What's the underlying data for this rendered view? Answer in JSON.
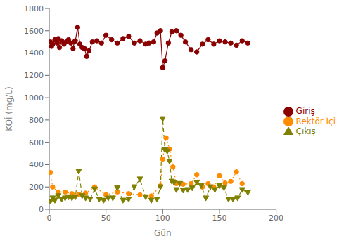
{
  "chart_data": {
    "type": "line",
    "xlabel": "Gün",
    "ylabel": "KOİ (mg/L)",
    "xlim": [
      0,
      200
    ],
    "ylim": [
      0,
      1800
    ],
    "xticks": [
      0,
      50,
      100,
      150,
      200
    ],
    "yticks": [
      0,
      200,
      400,
      600,
      800,
      1000,
      1200,
      1400,
      1600,
      1800
    ],
    "grid": false,
    "legend": "right",
    "series": [
      {
        "name": "Giriş",
        "color": "#8B0000",
        "marker": "circle",
        "line_style": "solid",
        "x": [
          1,
          2,
          3,
          5,
          7,
          8,
          9,
          11,
          13,
          15,
          17,
          19,
          21,
          22,
          23,
          25,
          27,
          29,
          31,
          33,
          35,
          38,
          42,
          46,
          50,
          55,
          60,
          65,
          70,
          75,
          80,
          85,
          88,
          92,
          95,
          98,
          100,
          102,
          105,
          108,
          112,
          116,
          120,
          125,
          130,
          135,
          140,
          145,
          150,
          155,
          160,
          165,
          170,
          175
        ],
        "values": [
          1500,
          1460,
          1480,
          1520,
          1490,
          1530,
          1450,
          1510,
          1480,
          1500,
          1520,
          1490,
          1440,
          1500,
          1510,
          1630,
          1480,
          1450,
          1440,
          1370,
          1420,
          1500,
          1510,
          1490,
          1560,
          1520,
          1490,
          1530,
          1550,
          1490,
          1510,
          1480,
          1490,
          1500,
          1580,
          1600,
          1270,
          1330,
          1490,
          1590,
          1600,
          1560,
          1500,
          1430,
          1410,
          1480,
          1520,
          1480,
          1510,
          1500,
          1490,
          1470,
          1510,
          1490
        ]
      },
      {
        "name": "Rektör İçi",
        "color": "#FF8C00",
        "marker": "circle",
        "line_style": "dotted",
        "x": [
          1,
          3,
          8,
          14,
          20,
          26,
          32,
          40,
          50,
          60,
          70,
          80,
          90,
          98,
          100,
          103,
          106,
          109,
          112,
          118,
          125,
          130,
          135,
          140,
          145,
          150,
          155,
          160,
          165,
          170
        ],
        "values": [
          330,
          200,
          155,
          155,
          140,
          135,
          145,
          200,
          130,
          155,
          140,
          130,
          120,
          210,
          450,
          640,
          540,
          380,
          230,
          225,
          230,
          310,
          200,
          230,
          200,
          300,
          235,
          250,
          335,
          230
        ]
      },
      {
        "name": "Çıkış",
        "color": "#808000",
        "marker": "triangle_down",
        "line_style": "dashed",
        "x": [
          1,
          3,
          5,
          8,
          11,
          14,
          17,
          20,
          23,
          26,
          29,
          32,
          36,
          40,
          44,
          48,
          52,
          56,
          60,
          65,
          70,
          75,
          80,
          85,
          90,
          95,
          98,
          100,
          102,
          104,
          106,
          108,
          110,
          112,
          115,
          118,
          122,
          126,
          130,
          134,
          138,
          142,
          146,
          150,
          154,
          158,
          162,
          166,
          170,
          175
        ],
        "values": [
          70,
          100,
          80,
          120,
          90,
          100,
          110,
          100,
          110,
          340,
          120,
          100,
          90,
          180,
          90,
          80,
          100,
          100,
          190,
          80,
          90,
          200,
          270,
          110,
          80,
          90,
          200,
          810,
          530,
          520,
          430,
          250,
          240,
          175,
          230,
          170,
          175,
          190,
          240,
          210,
          100,
          200,
          175,
          210,
          190,
          90,
          90,
          100,
          175,
          150
        ]
      }
    ]
  }
}
